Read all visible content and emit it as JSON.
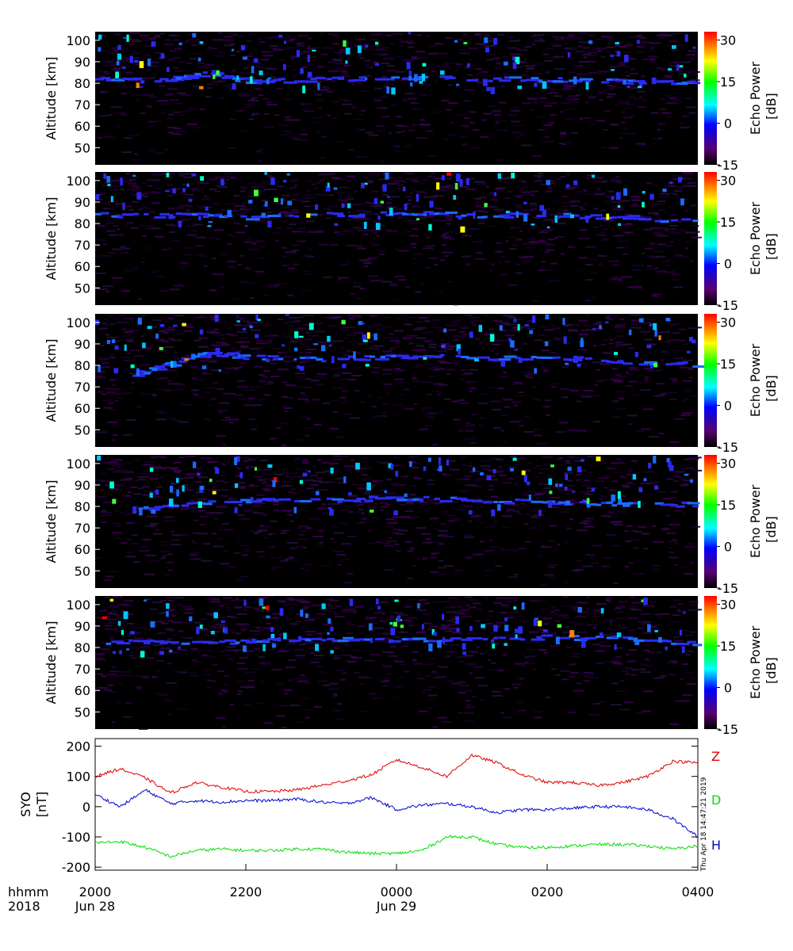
{
  "chart_data": [
    {
      "type": "heatmap",
      "panel": 1,
      "ylabel": "Altitude [km]",
      "yticks": [
        50,
        60,
        70,
        80,
        90,
        100
      ],
      "ylim": [
        42,
        104
      ],
      "colorbar": {
        "label": "Echo Power",
        "unit": "[dB]",
        "ticks": [
          30,
          15,
          0,
          -15
        ],
        "range": [
          -15,
          33
        ]
      },
      "echo_layer": [
        {
          "x": "20:00",
          "alt": 82
        },
        {
          "x": "21:00",
          "alt": 82
        },
        {
          "x": "21:30",
          "alt": 85
        },
        {
          "x": "22:00",
          "alt": 81
        },
        {
          "x": "23:00",
          "alt": 82
        },
        {
          "x": "00:00",
          "alt": 83
        },
        {
          "x": "01:00",
          "alt": 82
        },
        {
          "x": "02:00",
          "alt": 82
        },
        {
          "x": "03:00",
          "alt": 81
        },
        {
          "x": "04:00",
          "alt": 80
        }
      ]
    },
    {
      "type": "heatmap",
      "panel": 2,
      "ylabel": "Altitude [km]",
      "yticks": [
        50,
        60,
        70,
        80,
        90,
        100
      ],
      "ylim": [
        42,
        104
      ],
      "colorbar": {
        "label": "Echo Power",
        "unit": "[dB]",
        "ticks": [
          30,
          15,
          0,
          -15
        ],
        "range": [
          -15,
          33
        ]
      },
      "echo_layer": [
        {
          "x": "20:00",
          "alt": 84
        },
        {
          "x": "21:00",
          "alt": 84
        },
        {
          "x": "22:00",
          "alt": 83
        },
        {
          "x": "23:00",
          "alt": 84
        },
        {
          "x": "00:00",
          "alt": 85
        },
        {
          "x": "01:00",
          "alt": 84
        },
        {
          "x": "02:00",
          "alt": 84
        },
        {
          "x": "03:00",
          "alt": 83
        },
        {
          "x": "04:00",
          "alt": 81
        }
      ]
    },
    {
      "type": "heatmap",
      "panel": 3,
      "ylabel": "Altitude [km]",
      "yticks": [
        50,
        60,
        70,
        80,
        90,
        100
      ],
      "ylim": [
        42,
        104
      ],
      "colorbar": {
        "label": "Echo Power",
        "unit": "[dB]",
        "ticks": [
          30,
          15,
          0,
          -15
        ],
        "range": [
          -15,
          33
        ]
      },
      "echo_layer": [
        {
          "x": "20:30",
          "alt": 76
        },
        {
          "x": "21:00",
          "alt": 81
        },
        {
          "x": "21:30",
          "alt": 86
        },
        {
          "x": "22:00",
          "alt": 84
        },
        {
          "x": "23:00",
          "alt": 83
        },
        {
          "x": "00:00",
          "alt": 84
        },
        {
          "x": "01:00",
          "alt": 84
        },
        {
          "x": "02:00",
          "alt": 83
        },
        {
          "x": "03:00",
          "alt": 82
        },
        {
          "x": "04:00",
          "alt": 80
        }
      ]
    },
    {
      "type": "heatmap",
      "panel": 4,
      "ylabel": "Altitude [km]",
      "yticks": [
        50,
        60,
        70,
        80,
        90,
        100
      ],
      "ylim": [
        42,
        104
      ],
      "colorbar": {
        "label": "Echo Power",
        "unit": "[dB]",
        "ticks": [
          30,
          15,
          0,
          -15
        ],
        "range": [
          -15,
          33
        ]
      },
      "echo_layer": [
        {
          "x": "20:30",
          "alt": 78
        },
        {
          "x": "21:00",
          "alt": 81
        },
        {
          "x": "22:00",
          "alt": 83
        },
        {
          "x": "23:00",
          "alt": 83
        },
        {
          "x": "00:00",
          "alt": 84
        },
        {
          "x": "01:00",
          "alt": 83
        },
        {
          "x": "02:00",
          "alt": 82
        },
        {
          "x": "03:00",
          "alt": 81
        },
        {
          "x": "04:00",
          "alt": 81
        }
      ]
    },
    {
      "type": "heatmap",
      "panel": 5,
      "ylabel": "Altitude [km]",
      "yticks": [
        50,
        60,
        70,
        80,
        90,
        100
      ],
      "ylim": [
        42,
        104
      ],
      "colorbar": {
        "label": "Echo Power",
        "unit": "[dB]",
        "ticks": [
          30,
          15,
          0,
          -15
        ],
        "range": [
          -15,
          33
        ]
      },
      "echo_layer": [
        {
          "x": "20:00",
          "alt": 83
        },
        {
          "x": "21:00",
          "alt": 82
        },
        {
          "x": "22:00",
          "alt": 83
        },
        {
          "x": "23:00",
          "alt": 84
        },
        {
          "x": "00:00",
          "alt": 84
        },
        {
          "x": "01:00",
          "alt": 84
        },
        {
          "x": "02:00",
          "alt": 85
        },
        {
          "x": "03:00",
          "alt": 84
        },
        {
          "x": "04:00",
          "alt": 82
        }
      ]
    },
    {
      "type": "line",
      "ylabel": "SYO",
      "yunit": "[nT]",
      "yticks": [
        200,
        100,
        0,
        -100,
        -200
      ],
      "ylim": [
        -210,
        225
      ],
      "x": [
        "20:00",
        "20:20",
        "20:40",
        "21:00",
        "21:20",
        "21:40",
        "22:00",
        "22:20",
        "22:40",
        "23:00",
        "23:20",
        "23:40",
        "00:00",
        "00:20",
        "00:40",
        "01:00",
        "01:20",
        "01:40",
        "02:00",
        "02:20",
        "02:40",
        "03:00",
        "03:20",
        "03:40",
        "04:00"
      ],
      "series": [
        {
          "name": "Z",
          "color": "#dd0000",
          "values": [
            100,
            125,
            95,
            45,
            80,
            65,
            50,
            50,
            55,
            70,
            85,
            105,
            155,
            130,
            100,
            170,
            145,
            105,
            80,
            80,
            70,
            80,
            100,
            150,
            145
          ]
        },
        {
          "name": "D",
          "color": "#00dd00",
          "values": [
            -120,
            -115,
            -135,
            -165,
            -145,
            -140,
            -145,
            -145,
            -140,
            -140,
            -150,
            -155,
            -155,
            -145,
            -100,
            -100,
            -125,
            -135,
            -135,
            -130,
            -125,
            -125,
            -130,
            -140,
            -130
          ]
        },
        {
          "name": "H",
          "color": "#0000cc",
          "values": [
            40,
            0,
            55,
            10,
            20,
            15,
            20,
            20,
            25,
            15,
            10,
            30,
            -10,
            5,
            10,
            0,
            -20,
            -10,
            -10,
            -5,
            0,
            0,
            -10,
            -40,
            -100
          ]
        }
      ]
    }
  ],
  "time_axis": {
    "label_line1": "hhmm",
    "label_line2": "2018",
    "ticks": [
      "2000",
      "2200",
      "0000",
      "0200",
      "0400"
    ],
    "dates": [
      "Jun 28",
      "Jun 29"
    ]
  },
  "timestamp": "Thu Apr 18 14:47:21 2019",
  "colors": {
    "panel_bg": "#000000",
    "layer": "#2a2af0",
    "Z": "#dd0000",
    "D": "#00dd00",
    "H": "#0000cc"
  }
}
